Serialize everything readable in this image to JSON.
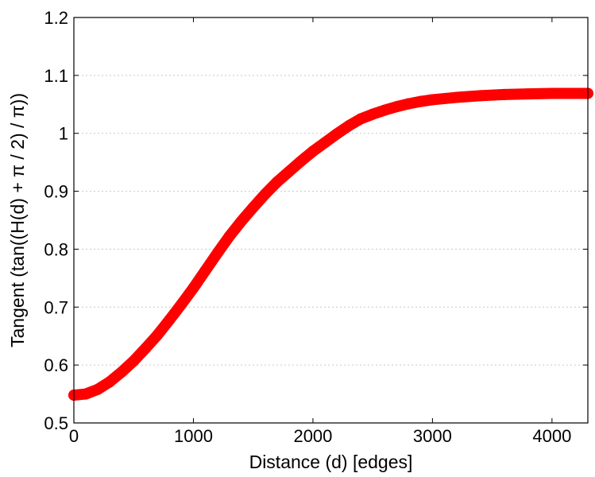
{
  "chart_data": {
    "type": "line",
    "title": "",
    "xlabel": "Distance (d) [edges]",
    "ylabel": "Tangent (tan((H(d) + π / 2) / π))",
    "xlim": [
      0,
      4300
    ],
    "ylim": [
      0.5,
      1.2
    ],
    "xticks": [
      0,
      1000,
      2000,
      3000,
      4000
    ],
    "xtick_labels": [
      "0",
      "1000",
      "2000",
      "3000",
      "4000"
    ],
    "yticks": [
      0.5,
      0.6,
      0.7,
      0.8,
      0.9,
      1.0,
      1.1,
      1.2
    ],
    "ytick_labels": [
      "0.5",
      "0.6",
      "0.7",
      "0.8",
      "0.9",
      "1",
      "1.1",
      "1.2"
    ],
    "grid": "horizontal-dotted",
    "series": [
      {
        "color": "#ff0000",
        "marker": "circle",
        "x": [
          0,
          100,
          200,
          300,
          400,
          500,
          600,
          700,
          800,
          900,
          1000,
          1100,
          1200,
          1300,
          1400,
          1500,
          1600,
          1700,
          1800,
          1900,
          2000,
          2100,
          2200,
          2300,
          2400,
          2500,
          2600,
          2700,
          2800,
          2900,
          3000,
          3200,
          3400,
          3600,
          3800,
          4000,
          4200,
          4300
        ],
        "y": [
          0.548,
          0.55,
          0.558,
          0.571,
          0.588,
          0.607,
          0.629,
          0.652,
          0.678,
          0.705,
          0.733,
          0.763,
          0.793,
          0.822,
          0.848,
          0.872,
          0.895,
          0.916,
          0.934,
          0.952,
          0.969,
          0.984,
          0.999,
          1.013,
          1.025,
          1.033,
          1.04,
          1.046,
          1.051,
          1.055,
          1.058,
          1.062,
          1.065,
          1.067,
          1.068,
          1.069,
          1.069,
          1.069
        ]
      }
    ]
  }
}
